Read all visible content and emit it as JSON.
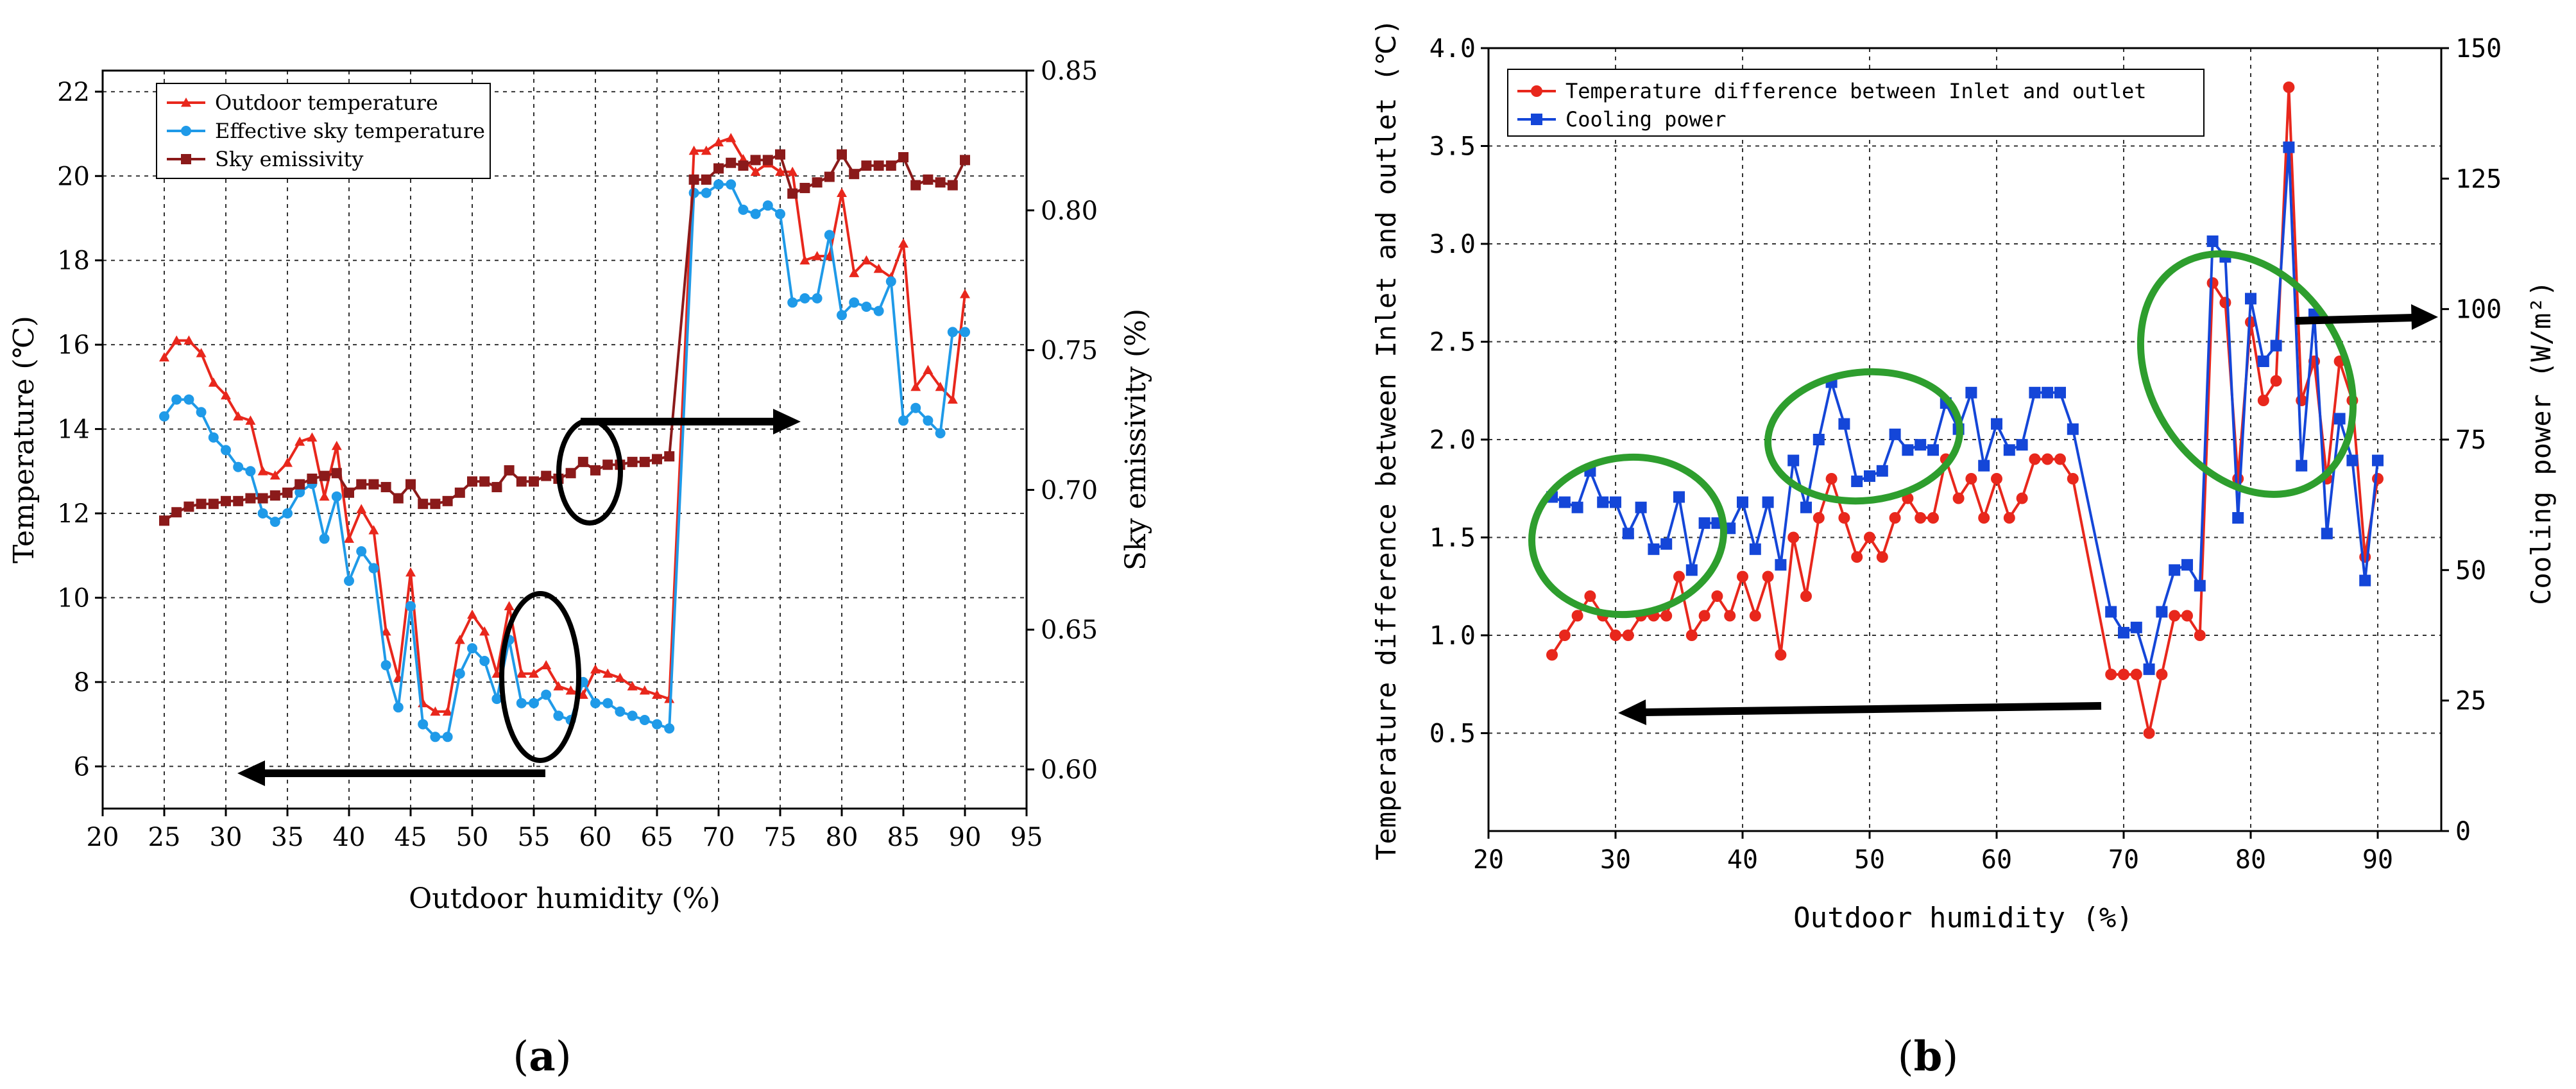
{
  "chart_data": [
    {
      "type": "line",
      "caption": "(a)",
      "xlabel": "Outdoor  humidity (%)",
      "ylabel": "Temperature (℃)",
      "ylabel_right": "Sky emissivity (%)",
      "xlim": [
        20,
        95
      ],
      "ylim": [
        5,
        22.5
      ],
      "ylim_right": [
        0.586,
        0.85
      ],
      "x_ticks": [
        "20",
        "25",
        "30",
        "35",
        "40",
        "45",
        "50",
        "55",
        "60",
        "65",
        "70",
        "75",
        "80",
        "85",
        "90",
        "95"
      ],
      "y_ticks": [
        "6",
        "8",
        "10",
        "12",
        "14",
        "16",
        "18",
        "20",
        "22"
      ],
      "y_ticks_right": [
        "0.60",
        "0.65",
        "0.70",
        "0.75",
        "0.80",
        "0.85"
      ],
      "grid": true,
      "legend_position": "top-left",
      "series": [
        {
          "name": "Outdoor  temperature",
          "axis": "left",
          "color": "#e8271c",
          "marker": "triangle",
          "x": [
            25,
            26,
            27,
            28,
            29,
            30,
            31,
            32,
            33,
            34,
            35,
            36,
            37,
            38,
            39,
            40,
            41,
            42,
            43,
            44,
            45,
            46,
            47,
            48,
            49,
            50,
            51,
            52,
            53,
            54,
            55,
            56,
            57,
            58,
            59,
            60,
            61,
            62,
            63,
            64,
            65,
            66,
            68,
            69,
            70,
            71,
            72,
            73,
            74,
            75,
            76,
            77,
            78,
            79,
            80,
            81,
            82,
            83,
            84,
            85,
            86,
            87,
            88,
            89,
            90
          ],
          "y": [
            15.7,
            16.1,
            16.1,
            15.8,
            15.1,
            14.8,
            14.3,
            14.2,
            13.0,
            12.9,
            13.2,
            13.7,
            13.8,
            12.4,
            13.6,
            11.4,
            12.1,
            11.6,
            9.2,
            8.1,
            10.6,
            7.5,
            7.3,
            7.3,
            9.0,
            9.6,
            9.2,
            8.2,
            9.8,
            8.2,
            8.2,
            8.4,
            7.9,
            7.8,
            7.7,
            8.3,
            8.2,
            8.1,
            7.9,
            7.8,
            7.7,
            7.6,
            20.6,
            20.6,
            20.8,
            20.9,
            20.4,
            20.1,
            20.3,
            20.1,
            20.1,
            18.0,
            18.1,
            18.1,
            19.6,
            17.7,
            18.0,
            17.8,
            17.6,
            18.4,
            15.0,
            15.4,
            15.0,
            14.7,
            17.2
          ]
        },
        {
          "name": "Effective sky temperature",
          "axis": "left",
          "color": "#1f9ae8",
          "marker": "circle",
          "x": [
            25,
            26,
            27,
            28,
            29,
            30,
            31,
            32,
            33,
            34,
            35,
            36,
            37,
            38,
            39,
            40,
            41,
            42,
            43,
            44,
            45,
            46,
            47,
            48,
            49,
            50,
            51,
            52,
            53,
            54,
            55,
            56,
            57,
            58,
            59,
            60,
            61,
            62,
            63,
            64,
            65,
            66,
            68,
            69,
            70,
            71,
            72,
            73,
            74,
            75,
            76,
            77,
            78,
            79,
            80,
            81,
            82,
            83,
            84,
            85,
            86,
            87,
            88,
            89,
            90
          ],
          "y": [
            14.3,
            14.7,
            14.7,
            14.4,
            13.8,
            13.5,
            13.1,
            13.0,
            12.0,
            11.8,
            12.0,
            12.5,
            12.7,
            11.4,
            12.4,
            10.4,
            11.1,
            10.7,
            8.4,
            7.4,
            9.8,
            7.0,
            6.7,
            6.7,
            8.2,
            8.8,
            8.5,
            7.6,
            9.0,
            7.5,
            7.5,
            7.7,
            7.2,
            7.1,
            8.0,
            7.5,
            7.5,
            7.3,
            7.2,
            7.1,
            7.0,
            6.9,
            19.6,
            19.6,
            19.8,
            19.8,
            19.2,
            19.1,
            19.3,
            19.1,
            17.0,
            17.1,
            17.1,
            18.6,
            16.7,
            17.0,
            16.9,
            16.8,
            17.5,
            14.2,
            14.5,
            14.2,
            13.9,
            16.3,
            16.3
          ]
        },
        {
          "name": "Sky emissivity",
          "axis": "right",
          "color": "#8b1a1a",
          "marker": "square",
          "x": [
            25,
            26,
            27,
            28,
            29,
            30,
            31,
            32,
            33,
            34,
            35,
            36,
            37,
            38,
            39,
            40,
            41,
            42,
            43,
            44,
            45,
            46,
            47,
            48,
            49,
            50,
            51,
            52,
            53,
            54,
            55,
            56,
            57,
            58,
            59,
            60,
            61,
            62,
            63,
            64,
            65,
            66,
            68,
            69,
            70,
            71,
            72,
            73,
            74,
            75,
            76,
            77,
            78,
            79,
            80,
            81,
            82,
            83,
            84,
            85,
            86,
            87,
            88,
            89,
            90
          ],
          "y": [
            0.689,
            0.692,
            0.694,
            0.695,
            0.695,
            0.696,
            0.696,
            0.697,
            0.697,
            0.698,
            0.699,
            0.702,
            0.704,
            0.705,
            0.706,
            0.699,
            0.702,
            0.702,
            0.701,
            0.697,
            0.702,
            0.695,
            0.695,
            0.696,
            0.699,
            0.703,
            0.703,
            0.701,
            0.707,
            0.703,
            0.703,
            0.705,
            0.704,
            0.706,
            0.71,
            0.707,
            0.709,
            0.709,
            0.71,
            0.71,
            0.711,
            0.712,
            0.811,
            0.811,
            0.815,
            0.817,
            0.816,
            0.818,
            0.818,
            0.82,
            0.806,
            0.808,
            0.81,
            0.812,
            0.82,
            0.813,
            0.816,
            0.816,
            0.816,
            0.819,
            0.809,
            0.811,
            0.81,
            0.809,
            0.818
          ]
        }
      ]
    },
    {
      "type": "line",
      "caption": "(b)",
      "xlabel": "Outdoor humidity (%)",
      "ylabel": "Temperature difference between Inlet and outlet (℃)",
      "ylabel_right": "Cooling power (W/m²)",
      "xlim": [
        20,
        95
      ],
      "ylim": [
        0,
        4.0
      ],
      "ylim_right": [
        0,
        150
      ],
      "x_ticks": [
        "20",
        "30",
        "40",
        "50",
        "60",
        "70",
        "80",
        "90"
      ],
      "y_ticks": [
        "0.5",
        "1.0",
        "1.5",
        "2.0",
        "2.5",
        "3.0",
        "3.5",
        "4.0"
      ],
      "y_ticks_right": [
        "0",
        "25",
        "50",
        "75",
        "100",
        "125",
        "150"
      ],
      "grid": true,
      "legend_position": "top-left",
      "series": [
        {
          "name": "Temperature difference between Inlet and outlet",
          "axis": "left",
          "color": "#e8271c",
          "marker": "circle",
          "x": [
            25,
            26,
            27,
            28,
            29,
            30,
            31,
            32,
            33,
            34,
            35,
            36,
            37,
            38,
            39,
            40,
            41,
            42,
            43,
            44,
            45,
            46,
            47,
            48,
            49,
            50,
            51,
            52,
            53,
            54,
            55,
            56,
            57,
            58,
            59,
            60,
            61,
            62,
            63,
            64,
            65,
            66,
            69,
            70,
            71,
            72,
            73,
            74,
            75,
            76,
            77,
            78,
            79,
            80,
            81,
            82,
            83,
            84,
            85,
            86,
            87,
            88,
            89,
            90
          ],
          "y": [
            0.9,
            1.0,
            1.1,
            1.2,
            1.1,
            1.0,
            1.0,
            1.1,
            1.1,
            1.1,
            1.3,
            1.0,
            1.1,
            1.2,
            1.1,
            1.3,
            1.1,
            1.3,
            0.9,
            1.5,
            1.2,
            1.6,
            1.8,
            1.6,
            1.4,
            1.5,
            1.4,
            1.6,
            1.7,
            1.6,
            1.6,
            1.9,
            1.7,
            1.8,
            1.6,
            1.8,
            1.6,
            1.7,
            1.9,
            1.9,
            1.9,
            1.8,
            0.8,
            0.8,
            0.8,
            0.5,
            0.8,
            1.1,
            1.1,
            1.0,
            2.8,
            2.7,
            1.8,
            2.6,
            2.2,
            2.3,
            3.8,
            2.2,
            2.4,
            1.8,
            2.4,
            2.2,
            1.4,
            1.8
          ]
        },
        {
          "name": "Cooling power",
          "axis": "right",
          "color": "#1446d8",
          "marker": "square",
          "x": [
            25,
            26,
            27,
            28,
            29,
            30,
            31,
            32,
            33,
            34,
            35,
            36,
            37,
            38,
            39,
            40,
            41,
            42,
            43,
            44,
            45,
            46,
            47,
            48,
            49,
            50,
            51,
            52,
            53,
            54,
            55,
            56,
            57,
            58,
            59,
            60,
            61,
            62,
            63,
            64,
            65,
            66,
            69,
            70,
            71,
            72,
            73,
            74,
            75,
            76,
            77,
            78,
            79,
            80,
            81,
            82,
            83,
            84,
            85,
            86,
            87,
            88,
            89,
            90
          ],
          "y": [
            64,
            63,
            62,
            69,
            63,
            63,
            57,
            62,
            54,
            55,
            64,
            50,
            59,
            59,
            58,
            63,
            54,
            63,
            51,
            71,
            62,
            75,
            86,
            78,
            67,
            68,
            69,
            76,
            73,
            74,
            73,
            82,
            77,
            84,
            70,
            78,
            73,
            74,
            84,
            84,
            84,
            77,
            42,
            38,
            39,
            31,
            42,
            50,
            51,
            47,
            113,
            110,
            60,
            102,
            90,
            93,
            131,
            70,
            99,
            57,
            79,
            71,
            48,
            71
          ]
        }
      ]
    }
  ],
  "arrow_color": "#000000",
  "ellipse_color": "#2e9e2e"
}
